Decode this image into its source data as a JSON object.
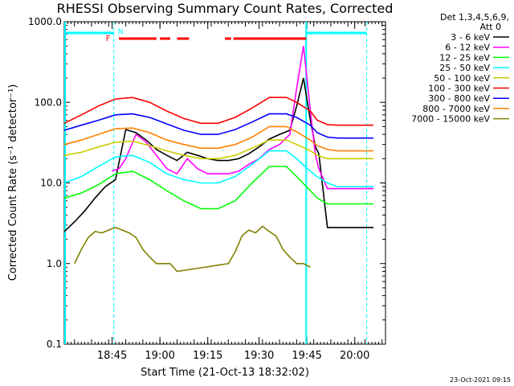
{
  "chart_data": {
    "type": "line",
    "title": "RHESSI Observing Summary Count Rates, Corrected",
    "ylabel": "Corrected Count Rate (s⁻¹ detector⁻¹)",
    "xlabel": "Start Time (21-Oct-13 18:32:02)",
    "footer_date": "23-Oct-2021 09:15",
    "y_scale": "log",
    "ylim": [
      0.1,
      1000
    ],
    "xlim": [
      0,
      94
    ],
    "x_unit": "minutes since 18:32:02",
    "yticks": [
      {
        "v": 0.1,
        "label": "0.1"
      },
      {
        "v": 1,
        "label": "1.0"
      },
      {
        "v": 10,
        "label": "10.0"
      },
      {
        "v": 100,
        "label": "100.0"
      },
      {
        "v": 1000,
        "label": "1000.0"
      }
    ],
    "xticks": [
      {
        "v": 14,
        "label": "18:45"
      },
      {
        "v": 28,
        "label": "19:00"
      },
      {
        "v": 42,
        "label": "19:15"
      },
      {
        "v": 57,
        "label": "19:30"
      },
      {
        "v": 71,
        "label": "19:45"
      },
      {
        "v": 85,
        "label": "20:00"
      }
    ],
    "legend": {
      "header_line1": "Det 1,3,4,5,6,9,",
      "header_line2": "Att 0",
      "placement": "outside-right-top"
    },
    "series": [
      {
        "name": "3 - 6 keV",
        "color": "#000000",
        "x": [
          0,
          3,
          6,
          9,
          12,
          15,
          18,
          21,
          24,
          27,
          30,
          33,
          36,
          39,
          42,
          45,
          48,
          51,
          54,
          57,
          60,
          63,
          66,
          68,
          70,
          72,
          73.5,
          74.5,
          77,
          80,
          83,
          86,
          89,
          90.5
        ],
        "y": [
          2.5,
          3.3,
          4.5,
          6.5,
          9,
          11,
          46,
          42,
          34,
          26,
          22,
          19,
          24,
          22,
          20,
          19,
          19,
          20,
          23,
          28,
          35,
          40,
          45,
          90,
          200,
          60,
          28,
          23,
          2.8,
          2.8,
          2.8,
          2.8,
          2.8,
          2.8
        ]
      },
      {
        "name": "6 - 12 keV",
        "color": "#ff00ff",
        "x": [
          14,
          16,
          18,
          21,
          24,
          27,
          30,
          33,
          36,
          39,
          42,
          45,
          48,
          51,
          54,
          57,
          60,
          63,
          66,
          68,
          70,
          72,
          73.5,
          74.5,
          77,
          80,
          83,
          86,
          89,
          90.5
        ],
        "y": [
          14,
          15,
          20,
          40,
          32,
          22,
          15,
          13,
          20,
          15,
          13,
          13,
          13,
          14,
          17,
          20,
          26,
          30,
          40,
          150,
          500,
          80,
          22,
          15,
          8.5,
          8.5,
          8.5,
          8.5,
          8.5,
          8.5
        ]
      },
      {
        "name": "12 - 25 keV",
        "color": "#00ff00",
        "x": [
          0,
          5,
          10,
          15,
          20,
          25,
          30,
          35,
          40,
          45,
          50,
          55,
          60,
          65,
          68,
          72,
          74,
          77,
          80,
          85,
          90.5
        ],
        "y": [
          6.5,
          7.5,
          9.5,
          13,
          14,
          11,
          8,
          6,
          4.8,
          4.8,
          6,
          10,
          16,
          16,
          12,
          8,
          6.5,
          5.5,
          5.5,
          5.5,
          5.5
        ]
      },
      {
        "name": "25 - 50 keV",
        "color": "#00ffff",
        "x": [
          0,
          5,
          10,
          15,
          20,
          25,
          30,
          35,
          40,
          45,
          50,
          55,
          60,
          65,
          68,
          72,
          74,
          77,
          80,
          85,
          90.5
        ],
        "y": [
          10,
          12,
          16,
          21,
          22,
          18,
          13,
          11,
          10,
          10,
          12,
          17,
          25,
          25,
          20,
          14,
          12,
          10,
          9,
          9,
          9
        ]
      },
      {
        "name": "50 - 100 keV",
        "color": "#cccc00",
        "x": [
          0,
          5,
          10,
          15,
          20,
          25,
          30,
          35,
          40,
          45,
          50,
          55,
          60,
          65,
          68,
          72,
          74,
          77,
          80,
          85,
          90.5
        ],
        "y": [
          22,
          24,
          28,
          32,
          33,
          29,
          25,
          22,
          20,
          20,
          22,
          27,
          34,
          34,
          30,
          25,
          22,
          20,
          20,
          20,
          20
        ]
      },
      {
        "name": "100 - 300 keV",
        "color": "#ff0000",
        "x": [
          0,
          5,
          10,
          15,
          20,
          25,
          30,
          35,
          40,
          45,
          50,
          55,
          60,
          65,
          68,
          72,
          74,
          77,
          80,
          85,
          90.5
        ],
        "y": [
          55,
          70,
          90,
          110,
          115,
          100,
          78,
          63,
          55,
          55,
          65,
          85,
          115,
          115,
          100,
          78,
          60,
          53,
          52,
          52,
          52
        ]
      },
      {
        "name": "300 - 800 keV",
        "color": "#0000ff",
        "x": [
          0,
          5,
          10,
          15,
          20,
          25,
          30,
          35,
          40,
          45,
          50,
          55,
          60,
          65,
          68,
          72,
          74,
          77,
          80,
          85,
          90.5
        ],
        "y": [
          45,
          52,
          60,
          70,
          72,
          65,
          54,
          45,
          40,
          40,
          46,
          57,
          72,
          72,
          65,
          52,
          42,
          37,
          36,
          36,
          36
        ]
      },
      {
        "name": "800 - 7000 keV",
        "color": "#ff8000",
        "x": [
          0,
          5,
          10,
          15,
          20,
          25,
          30,
          35,
          40,
          45,
          50,
          55,
          60,
          65,
          68,
          72,
          74,
          77,
          80,
          85,
          90.5
        ],
        "y": [
          30,
          34,
          40,
          47,
          48,
          42,
          34,
          30,
          27,
          27,
          30,
          37,
          50,
          50,
          43,
          34,
          29,
          26,
          25,
          25,
          25
        ]
      },
      {
        "name": "7000 - 15000 keV",
        "color": "#808000",
        "x": [
          3,
          5,
          7,
          9,
          11,
          13,
          15,
          17,
          19,
          21,
          23,
          25,
          27,
          29,
          31,
          33,
          48,
          50,
          52,
          54,
          56,
          58,
          60,
          62,
          64,
          66,
          68,
          70,
          72
        ],
        "y": [
          1.0,
          1.5,
          2.1,
          2.5,
          2.4,
          2.6,
          2.8,
          2.6,
          2.4,
          2.1,
          1.5,
          1.2,
          1.0,
          1.0,
          1.0,
          0.8,
          1.0,
          1.4,
          2.2,
          2.6,
          2.4,
          2.9,
          2.5,
          2.2,
          1.5,
          1.2,
          1.0,
          1.0,
          0.9
        ]
      }
    ],
    "annotations": {
      "vertical_lines_cyan": [
        14.5,
        88.5
      ],
      "solid_lines_cyan": [
        70.8
      ],
      "night_bars_cyan": [
        [
          0,
          14.5
        ],
        [
          70.8,
          88.5
        ]
      ],
      "saa_label": "N",
      "flare_label": "F",
      "flare_segments_red": [
        [
          16,
          27
        ],
        [
          28,
          31
        ],
        [
          33,
          36.5
        ],
        [
          47,
          48.8
        ],
        [
          49.5,
          70.8
        ]
      ]
    }
  }
}
